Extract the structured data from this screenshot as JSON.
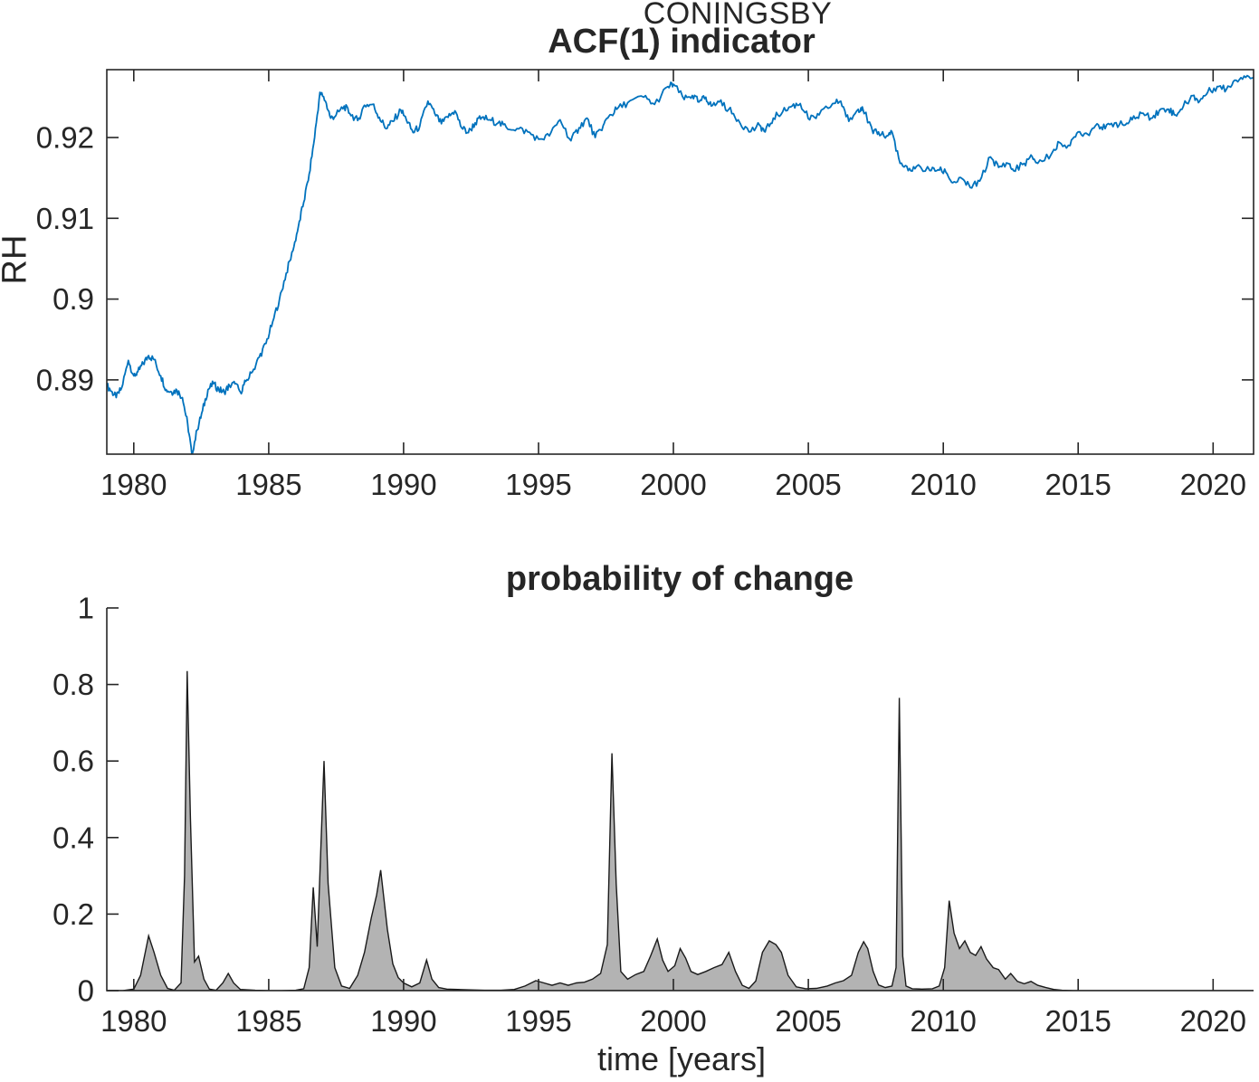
{
  "figure": {
    "background": "#ffffff",
    "text_color": "#262626"
  },
  "chart_data": [
    {
      "id": "acf1-indicator",
      "type": "line",
      "suptitle": "CONINGSBY",
      "title": "ACF(1) indicator",
      "ylabel": "RH",
      "xlabel": "",
      "line_color": "#0072BD",
      "box": "on",
      "grid": "off",
      "legend": "none",
      "xlim": [
        1979,
        2021.5
      ],
      "ylim": [
        0.8808,
        0.9284
      ],
      "xticks": [
        1980,
        1985,
        1990,
        1995,
        2000,
        2005,
        2010,
        2015,
        2020
      ],
      "xtick_labels": [
        "1980",
        "1985",
        "1990",
        "1995",
        "2000",
        "2005",
        "2010",
        "2015",
        "2020"
      ],
      "yticks": [
        0.89,
        0.9,
        0.91,
        0.92
      ],
      "ytick_labels": [
        "0.89",
        "0.9",
        "0.91",
        "0.92"
      ],
      "noise_amplitude": 0.00045,
      "x": [
        1979.0,
        1979.2,
        1979.35,
        1979.55,
        1979.8,
        1980.0,
        1980.15,
        1980.35,
        1980.55,
        1980.75,
        1981.0,
        1981.2,
        1981.4,
        1981.6,
        1981.8,
        1982.0,
        1982.15,
        1982.35,
        1982.55,
        1982.75,
        1982.95,
        1983.15,
        1983.35,
        1983.55,
        1983.75,
        1983.95,
        1984.15,
        1984.4,
        1984.65,
        1984.9,
        1985.15,
        1985.4,
        1985.65,
        1985.9,
        1986.1,
        1986.3,
        1986.5,
        1986.7,
        1986.9,
        1987.1,
        1987.3,
        1987.5,
        1987.8,
        1988.0,
        1988.3,
        1988.55,
        1988.85,
        1989.1,
        1989.35,
        1989.6,
        1989.9,
        1990.1,
        1990.35,
        1990.6,
        1990.9,
        1991.15,
        1991.4,
        1991.65,
        1991.9,
        1992.15,
        1992.4,
        1992.65,
        1992.9,
        1993.2,
        1993.5,
        1993.8,
        1994.2,
        1994.6,
        1995.0,
        1995.4,
        1995.8,
        1996.2,
        1996.5,
        1996.8,
        1997.1,
        1997.4,
        1997.6,
        1997.9,
        1998.3,
        1998.9,
        1999.3,
        1999.8,
        2000.0,
        2000.4,
        2000.7,
        2000.95,
        2001.2,
        2001.4,
        2001.7,
        2002.05,
        2002.4,
        2002.8,
        2003.2,
        2003.4,
        2003.7,
        2004.05,
        2004.4,
        2004.7,
        2005.05,
        2005.4,
        2005.9,
        2006.2,
        2006.5,
        2006.85,
        2007.0,
        2007.4,
        2007.6,
        2007.9,
        2008.1,
        2008.4,
        2008.7,
        2009.0,
        2009.5,
        2009.8,
        2010.1,
        2010.35,
        2010.7,
        2011.0,
        2011.35,
        2011.75,
        2012.05,
        2012.4,
        2012.6,
        2013.0,
        2013.3,
        2013.5,
        2014.0,
        2014.3,
        2014.7,
        2015.0,
        2015.35,
        2015.7,
        2016.0,
        2016.35,
        2016.7,
        2017.0,
        2017.35,
        2017.7,
        2018.0,
        2018.35,
        2018.6,
        2018.9,
        2019.25,
        2019.5,
        2019.8,
        2020.15,
        2020.5,
        2020.8,
        2021.15,
        2021.5
      ],
      "y": [
        0.8893,
        0.8885,
        0.8878,
        0.889,
        0.8924,
        0.8905,
        0.891,
        0.892,
        0.893,
        0.8925,
        0.8905,
        0.8888,
        0.8885,
        0.8887,
        0.8878,
        0.8845,
        0.8808,
        0.8838,
        0.8862,
        0.8888,
        0.8895,
        0.8888,
        0.8885,
        0.8893,
        0.8895,
        0.8885,
        0.8898,
        0.891,
        0.8928,
        0.8945,
        0.8972,
        0.9,
        0.9032,
        0.906,
        0.909,
        0.912,
        0.9155,
        0.92,
        0.9256,
        0.9245,
        0.9224,
        0.9228,
        0.9239,
        0.923,
        0.9221,
        0.924,
        0.9241,
        0.9225,
        0.9211,
        0.922,
        0.9234,
        0.9222,
        0.9206,
        0.9214,
        0.9245,
        0.923,
        0.9217,
        0.9225,
        0.9233,
        0.9212,
        0.9206,
        0.9218,
        0.9225,
        0.9222,
        0.9218,
        0.9213,
        0.9211,
        0.9207,
        0.9198,
        0.9202,
        0.9222,
        0.9196,
        0.9212,
        0.9224,
        0.92,
        0.9215,
        0.9226,
        0.9235,
        0.9243,
        0.925,
        0.9241,
        0.9263,
        0.9266,
        0.9247,
        0.9252,
        0.9244,
        0.925,
        0.9239,
        0.9244,
        0.9235,
        0.9222,
        0.9207,
        0.9215,
        0.9207,
        0.9224,
        0.9232,
        0.9239,
        0.9242,
        0.9222,
        0.9228,
        0.9242,
        0.9245,
        0.922,
        0.9235,
        0.9238,
        0.9205,
        0.9207,
        0.9202,
        0.9207,
        0.9168,
        0.9159,
        0.9164,
        0.9159,
        0.916,
        0.9157,
        0.9144,
        0.9149,
        0.9138,
        0.9146,
        0.9176,
        0.9163,
        0.9168,
        0.9159,
        0.9168,
        0.9176,
        0.9168,
        0.9179,
        0.9194,
        0.919,
        0.9207,
        0.9204,
        0.9217,
        0.9211,
        0.9218,
        0.9215,
        0.9222,
        0.923,
        0.9224,
        0.9233,
        0.9235,
        0.9228,
        0.9239,
        0.9252,
        0.9245,
        0.9256,
        0.9263,
        0.926,
        0.9271,
        0.9276,
        0.9274
      ]
    },
    {
      "id": "probability-of-change",
      "type": "area",
      "title": "probability of change",
      "xlabel": "time [years]",
      "ylabel": "",
      "fill_color": "#b3b3b3",
      "edge_color": "#1a1a1a",
      "box": "off",
      "grid": "off",
      "legend": "none",
      "xlim": [
        1979,
        2021.5
      ],
      "ylim": [
        0,
        1
      ],
      "xticks": [
        1980,
        1985,
        1990,
        1995,
        2000,
        2005,
        2010,
        2015,
        2020
      ],
      "xtick_labels": [
        "1980",
        "1985",
        "1990",
        "1995",
        "2000",
        "2005",
        "2010",
        "2015",
        "2020"
      ],
      "yticks": [
        0,
        0.2,
        0.4,
        0.6,
        0.8,
        1
      ],
      "ytick_labels": [
        "0",
        "0.2",
        "0.4",
        "0.6",
        "0.8",
        "1"
      ],
      "x": [
        1979.0,
        1979.6,
        1980.0,
        1980.25,
        1980.55,
        1980.75,
        1981.0,
        1981.25,
        1981.5,
        1981.75,
        1981.88,
        1981.98,
        1982.1,
        1982.25,
        1982.4,
        1982.6,
        1982.8,
        1983.05,
        1983.3,
        1983.5,
        1983.7,
        1983.95,
        1984.5,
        1985.0,
        1985.5,
        1986.0,
        1986.3,
        1986.5,
        1986.65,
        1986.8,
        1987.05,
        1987.2,
        1987.45,
        1987.7,
        1988.0,
        1988.3,
        1988.55,
        1988.8,
        1989.0,
        1989.15,
        1989.4,
        1989.6,
        1989.8,
        1990.0,
        1990.3,
        1990.6,
        1990.85,
        1991.05,
        1991.3,
        1991.6,
        1992.0,
        1992.5,
        1993.0,
        1993.6,
        1994.1,
        1994.5,
        1994.9,
        1995.2,
        1995.5,
        1995.8,
        1996.1,
        1996.4,
        1996.7,
        1997.0,
        1997.3,
        1997.55,
        1997.72,
        1997.88,
        1998.05,
        1998.3,
        1998.6,
        1998.9,
        1999.15,
        1999.4,
        1999.6,
        1999.8,
        2000.05,
        2000.25,
        2000.45,
        2000.65,
        2000.9,
        2001.2,
        2001.5,
        2001.8,
        2002.05,
        2002.3,
        2002.55,
        2002.8,
        2003.05,
        2003.3,
        2003.55,
        2003.8,
        2004.0,
        2004.25,
        2004.55,
        2004.9,
        2005.3,
        2005.7,
        2006.0,
        2006.3,
        2006.6,
        2006.85,
        2007.05,
        2007.2,
        2007.4,
        2007.6,
        2007.85,
        2008.1,
        2008.25,
        2008.37,
        2008.5,
        2008.62,
        2008.85,
        2009.2,
        2009.6,
        2009.85,
        2010.05,
        2010.22,
        2010.4,
        2010.6,
        2010.8,
        2011.0,
        2011.2,
        2011.4,
        2011.6,
        2011.85,
        2012.05,
        2012.3,
        2012.5,
        2012.75,
        2013.0,
        2013.25,
        2013.5,
        2013.8,
        2014.1,
        2014.4,
        2014.8,
        2015.5,
        2016.5,
        2017.5,
        2018.5,
        2019.5,
        2020.5,
        2021.5
      ],
      "y": [
        0,
        0,
        0.004,
        0.04,
        0.143,
        0.1,
        0.04,
        0.006,
        0.001,
        0.02,
        0.3,
        0.835,
        0.45,
        0.075,
        0.09,
        0.03,
        0.004,
        0.001,
        0.02,
        0.045,
        0.02,
        0.003,
        0.001,
        0,
        0,
        0.001,
        0.005,
        0.06,
        0.27,
        0.115,
        0.6,
        0.28,
        0.06,
        0.012,
        0.006,
        0.04,
        0.1,
        0.19,
        0.25,
        0.315,
        0.16,
        0.07,
        0.034,
        0.02,
        0.01,
        0.02,
        0.08,
        0.03,
        0.008,
        0.004,
        0.003,
        0.002,
        0.001,
        0.001,
        0.003,
        0.012,
        0.026,
        0.02,
        0.014,
        0.02,
        0.014,
        0.02,
        0.022,
        0.03,
        0.045,
        0.12,
        0.62,
        0.28,
        0.05,
        0.03,
        0.042,
        0.05,
        0.09,
        0.135,
        0.08,
        0.05,
        0.065,
        0.11,
        0.085,
        0.05,
        0.042,
        0.05,
        0.06,
        0.068,
        0.1,
        0.05,
        0.014,
        0.006,
        0.025,
        0.1,
        0.13,
        0.12,
        0.1,
        0.04,
        0.01,
        0.005,
        0.006,
        0.012,
        0.02,
        0.026,
        0.04,
        0.1,
        0.128,
        0.11,
        0.05,
        0.015,
        0.008,
        0.012,
        0.06,
        0.765,
        0.09,
        0.012,
        0.005,
        0.004,
        0.005,
        0.012,
        0.06,
        0.235,
        0.15,
        0.11,
        0.13,
        0.1,
        0.092,
        0.115,
        0.083,
        0.06,
        0.055,
        0.03,
        0.045,
        0.024,
        0.018,
        0.024,
        0.014,
        0.008,
        0.003,
        0.001,
        0,
        0,
        0,
        0,
        0,
        0,
        0,
        0
      ]
    }
  ]
}
